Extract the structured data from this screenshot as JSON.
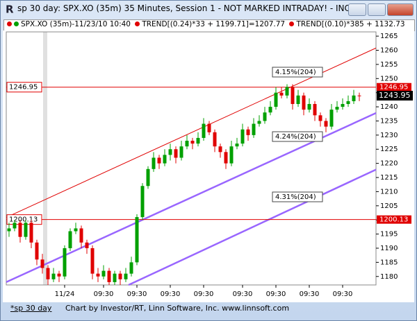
{
  "window_title": "sp 30 day: SPX.XO (35m) 35 Minutes, Session 1 - NOT MARKED INTRADAY! - INC...",
  "legend": {
    "instrument": "SPX.XO (35m)-11/23/10 10:40",
    "trend1": "TREND[(0.24)*33 + 1199.71]=1207.77",
    "trend2": "TREND[(0.10)*385 + 1132.73"
  },
  "tab": "*sp 30 day",
  "footer": "Chart by Investor/RT, Linn Software, Inc. www.linnsoft.com",
  "chart_data": {
    "type": "candlestick",
    "up_color": "#00a000",
    "down_color": "#e00000",
    "ohlc": [
      [
        1196,
        1199,
        1194,
        1197
      ],
      [
        1197,
        1200,
        1196,
        1199
      ],
      [
        1199,
        1200,
        1192,
        1194
      ],
      [
        1194,
        1200,
        1193,
        1199
      ],
      [
        1199,
        1200,
        1190,
        1192
      ],
      [
        1192,
        1193,
        1184,
        1186
      ],
      [
        1186,
        1188,
        1181,
        1183
      ],
      [
        1183,
        1184,
        1177,
        1179
      ],
      [
        1179,
        1183,
        1178,
        1181
      ],
      [
        1181,
        1182,
        1178,
        1180
      ],
      [
        1180,
        1191,
        1179,
        1190
      ],
      [
        1190,
        1197,
        1189,
        1196
      ],
      [
        1196,
        1199,
        1195,
        1197
      ],
      [
        1197,
        1198,
        1190,
        1192
      ],
      [
        1192,
        1193,
        1188,
        1190
      ],
      [
        1190,
        1191,
        1179,
        1181
      ],
      [
        1181,
        1183,
        1178,
        1180
      ],
      [
        1180,
        1184,
        1179,
        1182
      ],
      [
        1182,
        1183,
        1177,
        1178
      ],
      [
        1178,
        1182,
        1177,
        1181
      ],
      [
        1181,
        1182,
        1177,
        1179
      ],
      [
        1179,
        1183,
        1178,
        1181
      ],
      [
        1181,
        1187,
        1180,
        1185
      ],
      [
        1185,
        1202,
        1184,
        1201
      ],
      [
        1201,
        1213,
        1200,
        1212
      ],
      [
        1212,
        1219,
        1211,
        1218
      ],
      [
        1218,
        1224,
        1217,
        1222
      ],
      [
        1222,
        1223,
        1218,
        1220
      ],
      [
        1220,
        1225,
        1219,
        1223
      ],
      [
        1223,
        1227,
        1221,
        1225
      ],
      [
        1225,
        1226,
        1220,
        1222
      ],
      [
        1222,
        1228,
        1221,
        1226
      ],
      [
        1226,
        1230,
        1225,
        1228
      ],
      [
        1228,
        1229,
        1225,
        1227
      ],
      [
        1227,
        1231,
        1226,
        1229
      ],
      [
        1229,
        1236,
        1228,
        1234
      ],
      [
        1234,
        1235,
        1230,
        1231
      ],
      [
        1231,
        1232,
        1224,
        1226
      ],
      [
        1226,
        1227,
        1222,
        1224
      ],
      [
        1224,
        1225,
        1218,
        1220
      ],
      [
        1220,
        1228,
        1219,
        1226
      ],
      [
        1226,
        1229,
        1225,
        1227
      ],
      [
        1227,
        1234,
        1226,
        1232
      ],
      [
        1232,
        1233,
        1228,
        1230
      ],
      [
        1230,
        1236,
        1229,
        1234
      ],
      [
        1234,
        1237,
        1233,
        1235
      ],
      [
        1235,
        1240,
        1234,
        1238
      ],
      [
        1238,
        1242,
        1237,
        1240
      ],
      [
        1240,
        1247,
        1239,
        1245
      ],
      [
        1245,
        1247,
        1243,
        1244
      ],
      [
        1244,
        1248,
        1243,
        1247
      ],
      [
        1247,
        1248,
        1239,
        1241
      ],
      [
        1241,
        1246,
        1240,
        1244
      ],
      [
        1244,
        1245,
        1237,
        1239
      ],
      [
        1239,
        1243,
        1238,
        1241
      ],
      [
        1241,
        1242,
        1235,
        1237
      ],
      [
        1237,
        1238,
        1233,
        1235
      ],
      [
        1235,
        1236,
        1231,
        1233
      ],
      [
        1233,
        1241,
        1232,
        1239
      ],
      [
        1239,
        1242,
        1238,
        1240
      ],
      [
        1240,
        1243,
        1239,
        1241
      ],
      [
        1241,
        1244,
        1240,
        1242
      ],
      [
        1242,
        1246,
        1241,
        1244
      ],
      [
        1244,
        1245,
        1242,
        1243.95
      ]
    ],
    "xlim": [
      -0.5,
      66
    ],
    "xticks": [
      {
        "value": 10,
        "label": "11/24"
      },
      {
        "value": 17,
        "label": "09:30"
      },
      {
        "value": 23,
        "label": "09:30"
      },
      {
        "value": 29,
        "label": "09:30"
      },
      {
        "value": 35,
        "label": "09:30"
      },
      {
        "value": 42,
        "label": "09:30"
      },
      {
        "value": 48,
        "label": "09:30"
      },
      {
        "value": 54,
        "label": "09:30"
      },
      {
        "value": 60,
        "label": "09:30"
      }
    ],
    "ylim": [
      1177,
      1266.5
    ],
    "yticks": [
      1180,
      1185,
      1190,
      1195,
      1200,
      1205,
      1210,
      1215,
      1220,
      1225,
      1230,
      1235,
      1240,
      1245,
      1250,
      1255,
      1260,
      1265
    ],
    "levels": [
      1246.95,
      1200.13
    ],
    "level_color": "#e00000",
    "trends": [
      {
        "color": "#e00000",
        "x": [
          -0.5,
          66
        ],
        "values": [
          1200.9,
          1260.8
        ]
      },
      {
        "color": "#9966ff",
        "x": [
          -0.5,
          66
        ],
        "values": [
          1178,
          1237.8
        ]
      },
      {
        "color": "#9966ff",
        "x": [
          21.5,
          66
        ],
        "values": [
          1177,
          1217.8
        ]
      }
    ],
    "annotations": [
      "4.15%(204)",
      "4.24%(204)",
      "4.31%(204)"
    ]
  }
}
